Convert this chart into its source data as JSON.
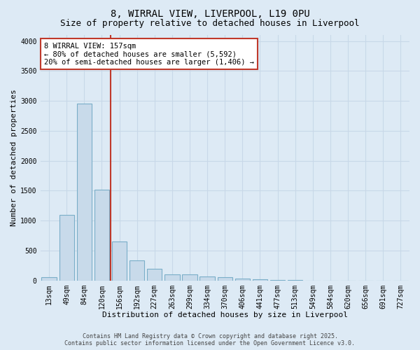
{
  "title1": "8, WIRRAL VIEW, LIVERPOOL, L19 0PU",
  "title2": "Size of property relative to detached houses in Liverpool",
  "xlabel": "Distribution of detached houses by size in Liverpool",
  "ylabel": "Number of detached properties",
  "categories": [
    "13sqm",
    "49sqm",
    "84sqm",
    "120sqm",
    "156sqm",
    "192sqm",
    "227sqm",
    "263sqm",
    "299sqm",
    "334sqm",
    "370sqm",
    "406sqm",
    "441sqm",
    "477sqm",
    "513sqm",
    "549sqm",
    "584sqm",
    "620sqm",
    "656sqm",
    "691sqm",
    "727sqm"
  ],
  "values": [
    50,
    1100,
    2950,
    1520,
    650,
    330,
    200,
    100,
    100,
    65,
    50,
    30,
    15,
    10,
    3,
    2,
    1,
    1,
    0,
    0,
    0
  ],
  "bar_color": "#c8daea",
  "bar_edgecolor": "#7aaec8",
  "vline_x_index": 3,
  "vline_color": "#c0392b",
  "annotation_text": "8 WIRRAL VIEW: 157sqm\n← 80% of detached houses are smaller (5,592)\n20% of semi-detached houses are larger (1,406) →",
  "annotation_box_color": "#c0392b",
  "annotation_bg": "#ffffff",
  "ylim": [
    0,
    4100
  ],
  "yticks": [
    0,
    500,
    1000,
    1500,
    2000,
    2500,
    3000,
    3500,
    4000
  ],
  "grid_color": "#c8d8e8",
  "bg_color": "#ddeaf5",
  "fig_bg_color": "#ddeaf5",
  "footer": "Contains HM Land Registry data © Crown copyright and database right 2025.\nContains public sector information licensed under the Open Government Licence v3.0.",
  "title_fontsize": 10,
  "subtitle_fontsize": 9,
  "xlabel_fontsize": 8,
  "ylabel_fontsize": 8,
  "tick_fontsize": 7,
  "footer_fontsize": 6,
  "ann_fontsize": 7.5
}
